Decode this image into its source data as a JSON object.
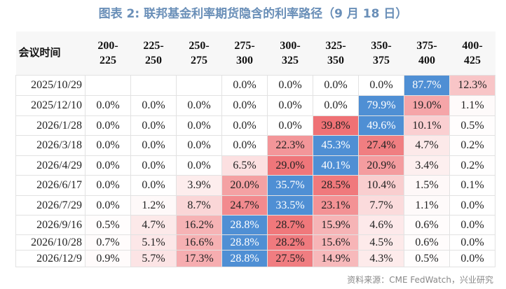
{
  "title": "图表 2:  联邦基金利率期货隐含的利率路径（9 月 18 日）",
  "header": {
    "first": "会议时间",
    "ranges": [
      [
        "200-",
        "225"
      ],
      [
        "225-",
        "250"
      ],
      [
        "250-",
        "275"
      ],
      [
        "275-",
        "300"
      ],
      [
        "300-",
        "325"
      ],
      [
        "325-",
        "350"
      ],
      [
        "350-",
        "375"
      ],
      [
        "375-",
        "400"
      ],
      [
        "400-",
        "425"
      ]
    ]
  },
  "rows": [
    {
      "date": "2025/10/29",
      "values": [
        "",
        "",
        "",
        "0.0%",
        "0.0%",
        "0.0%",
        "0.0%",
        "87.7%",
        "12.3%"
      ]
    },
    {
      "date": "2025/12/10",
      "values": [
        "0.0%",
        "0.0%",
        "0.0%",
        "0.0%",
        "0.0%",
        "0.0%",
        "79.9%",
        "19.0%",
        "1.1%"
      ]
    },
    {
      "date": "2026/1/28",
      "values": [
        "0.0%",
        "0.0%",
        "0.0%",
        "0.0%",
        "0.0%",
        "39.8%",
        "49.6%",
        "10.1%",
        "0.5%"
      ]
    },
    {
      "date": "2026/3/18",
      "values": [
        "0.0%",
        "0.0%",
        "0.0%",
        "0.0%",
        "22.3%",
        "45.3%",
        "27.4%",
        "4.7%",
        "0.2%"
      ]
    },
    {
      "date": "2026/4/29",
      "values": [
        "0.0%",
        "0.0%",
        "0.0%",
        "6.5%",
        "29.0%",
        "40.1%",
        "20.9%",
        "3.4%",
        "0.2%"
      ]
    },
    {
      "date": "2026/6/17",
      "values": [
        "0.0%",
        "0.0%",
        "3.9%",
        "20.0%",
        "35.7%",
        "28.5%",
        "10.4%",
        "1.5%",
        "0.1%"
      ]
    },
    {
      "date": "2026/7/29",
      "values": [
        "0.0%",
        "1.2%",
        "8.7%",
        "24.7%",
        "33.5%",
        "23.1%",
        "7.7%",
        "1.1%",
        "0.0%"
      ]
    },
    {
      "date": "2026/9/16",
      "values": [
        "0.5%",
        "4.7%",
        "16.2%",
        "28.8%",
        "28.7%",
        "15.9%",
        "4.6%",
        "0.6%",
        "0.0%"
      ]
    },
    {
      "date": "2026/10/28",
      "values": [
        "0.7%",
        "5.1%",
        "16.6%",
        "28.8%",
        "28.2%",
        "15.6%",
        "4.5%",
        "0.6%",
        "0.0%"
      ]
    },
    {
      "date": "2026/12/9",
      "values": [
        "0.9%",
        "5.7%",
        "17.3%",
        "28.8%",
        "27.5%",
        "14.9%",
        "4.3%",
        "0.5%",
        "0.0%"
      ]
    }
  ],
  "colors": {
    "max": "#4f8fd4",
    "heat": "#ee6a6e",
    "title": "#6a8fb8"
  },
  "source": "资料来源：CME FedWatch，兴业研究"
}
